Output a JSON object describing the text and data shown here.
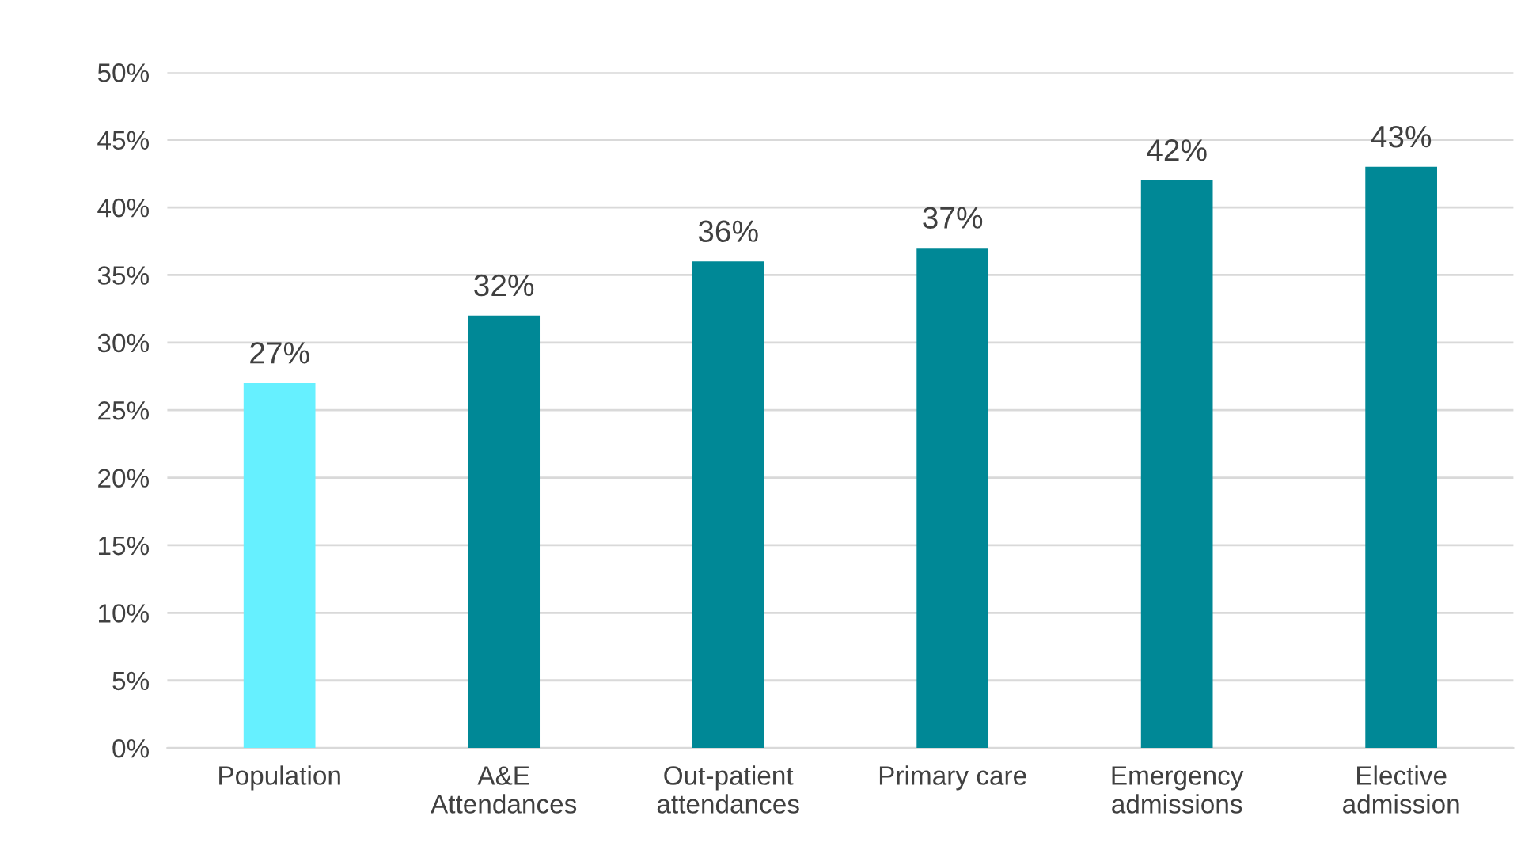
{
  "chart_data": {
    "type": "bar",
    "categories": [
      "Population",
      "A&E\nAttendances",
      "Out-patient\nattendances",
      "Primary care",
      "Emergency\nadmissions",
      "Elective\nadmission"
    ],
    "values": [
      27,
      32,
      36,
      37,
      42,
      43
    ],
    "colors": [
      "#66f0ff",
      "#008896",
      "#008896",
      "#008896",
      "#008896",
      "#008896"
    ],
    "value_labels": [
      "27%",
      "32%",
      "36%",
      "37%",
      "42%",
      "43%"
    ],
    "ylim": [
      0,
      50
    ],
    "yticks": [
      {
        "value": 0,
        "label": "0%"
      },
      {
        "value": 5,
        "label": "5%"
      },
      {
        "value": 10,
        "label": "10%"
      },
      {
        "value": 15,
        "label": "15%"
      },
      {
        "value": 20,
        "label": "20%"
      },
      {
        "value": 25,
        "label": "25%"
      },
      {
        "value": 30,
        "label": "30%"
      },
      {
        "value": 35,
        "label": "35%"
      },
      {
        "value": 40,
        "label": "40%"
      },
      {
        "value": 45,
        "label": "45%"
      },
      {
        "value": 50,
        "label": "50%"
      }
    ],
    "grid": "y"
  }
}
